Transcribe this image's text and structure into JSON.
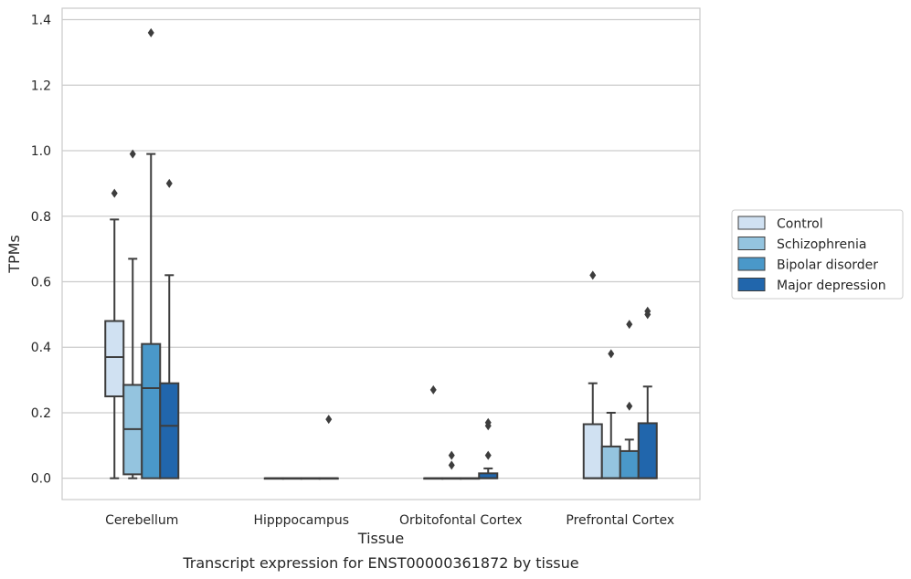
{
  "caption": "Transcript expression for ENST00000361872 by tissue",
  "chart_data": {
    "type": "box",
    "xlabel": "Tissue",
    "ylabel": "TPMs",
    "ylim": [
      -0.065,
      1.435
    ],
    "yticks": [
      "0.0",
      "0.2",
      "0.4",
      "0.6",
      "0.8",
      "1.0",
      "1.2",
      "1.4"
    ],
    "ytick_values": [
      0.0,
      0.2,
      0.4,
      0.6,
      0.8,
      1.0,
      1.2,
      1.4
    ],
    "grid": true,
    "legend_position": "right",
    "categories": [
      "Cerebellum",
      "Hipppocampus",
      "Orbitofontal Cortex",
      "Prefrontal Cortex"
    ],
    "series": [
      {
        "name": "Control",
        "color": "#d0e1f2",
        "boxes": [
          {
            "whislo": 0.0,
            "q1": 0.25,
            "med": 0.37,
            "q3": 0.48,
            "whishi": 0.79,
            "fliers": [
              0.87
            ]
          },
          {
            "whislo": 0.0,
            "q1": 0.0,
            "med": 0.0,
            "q3": 0.0,
            "whishi": 0.0,
            "fliers": []
          },
          {
            "whislo": 0.0,
            "q1": 0.0,
            "med": 0.0,
            "q3": 0.0,
            "whishi": 0.0,
            "fliers": [
              0.27
            ]
          },
          {
            "whislo": 0.0,
            "q1": 0.0,
            "med": 0.0,
            "q3": 0.165,
            "whishi": 0.29,
            "fliers": [
              0.62
            ]
          }
        ]
      },
      {
        "name": "Schizophrenia",
        "color": "#94c4df",
        "boxes": [
          {
            "whislo": 0.0,
            "q1": 0.012,
            "med": 0.15,
            "q3": 0.285,
            "whishi": 0.67,
            "fliers": [
              0.99
            ]
          },
          {
            "whislo": 0.0,
            "q1": 0.0,
            "med": 0.0,
            "q3": 0.0,
            "whishi": 0.0,
            "fliers": []
          },
          {
            "whislo": 0.0,
            "q1": 0.0,
            "med": 0.0,
            "q3": 0.0,
            "whishi": 0.0,
            "fliers": [
              0.04,
              0.07
            ]
          },
          {
            "whislo": 0.0,
            "q1": 0.0,
            "med": 0.0,
            "q3": 0.097,
            "whishi": 0.2,
            "fliers": [
              0.38
            ]
          }
        ]
      },
      {
        "name": "Bipolar disorder",
        "color": "#4a98c9",
        "boxes": [
          {
            "whislo": 0.0,
            "q1": 0.0,
            "med": 0.275,
            "q3": 0.41,
            "whishi": 0.99,
            "fliers": [
              1.36
            ]
          },
          {
            "whislo": 0.0,
            "q1": 0.0,
            "med": 0.0,
            "q3": 0.0,
            "whishi": 0.0,
            "fliers": []
          },
          {
            "whislo": 0.0,
            "q1": 0.0,
            "med": 0.0,
            "q3": 0.0,
            "whishi": 0.0,
            "fliers": []
          },
          {
            "whislo": 0.0,
            "q1": 0.0,
            "med": 0.0,
            "q3": 0.083,
            "whishi": 0.118,
            "fliers": [
              0.22,
              0.47
            ]
          }
        ]
      },
      {
        "name": "Major depression",
        "color": "#2166ac",
        "boxes": [
          {
            "whislo": 0.0,
            "q1": 0.0,
            "med": 0.16,
            "q3": 0.29,
            "whishi": 0.62,
            "fliers": [
              0.9
            ]
          },
          {
            "whislo": 0.0,
            "q1": 0.0,
            "med": 0.0,
            "q3": 0.0,
            "whishi": 0.0,
            "fliers": [
              0.18
            ]
          },
          {
            "whislo": 0.0,
            "q1": 0.0,
            "med": 0.0,
            "q3": 0.015,
            "whishi": 0.03,
            "fliers": [
              0.07,
              0.16,
              0.17
            ]
          },
          {
            "whislo": 0.0,
            "q1": 0.0,
            "med": 0.0,
            "q3": 0.168,
            "whishi": 0.28,
            "fliers": [
              0.5,
              0.51
            ]
          }
        ]
      }
    ]
  }
}
